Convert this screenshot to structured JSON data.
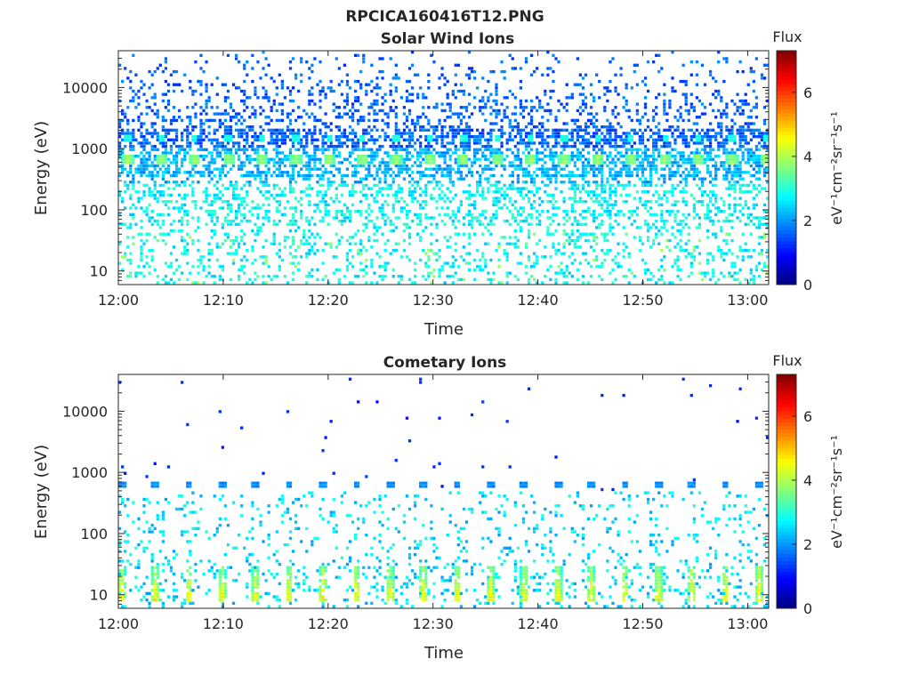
{
  "figure": {
    "title": "RPCICA160416T12.PNG"
  },
  "chart_data": [
    {
      "type": "heatmap",
      "title": "Solar Wind Ions",
      "xlabel": "Time",
      "ylabel": "Energy (eV)",
      "x_ticks": [
        "12:00",
        "12:10",
        "12:20",
        "12:30",
        "12:40",
        "12:50",
        "13:00"
      ],
      "x_tick_minutes": [
        0,
        10,
        20,
        30,
        40,
        50,
        60
      ],
      "xlim_minutes": [
        0,
        62
      ],
      "y_scale": "log",
      "y_ticks": [
        "10",
        "100",
        "1000",
        "10000"
      ],
      "y_tick_values": [
        10,
        100,
        1000,
        10000
      ],
      "ylim": [
        6,
        40000
      ],
      "colorbar": {
        "title": "Flux",
        "label": "eV⁻¹cm⁻²sr⁻¹s⁻¹",
        "ticks": [
          "0",
          "2",
          "4",
          "6"
        ],
        "tick_values": [
          0,
          2,
          4,
          6
        ],
        "range": [
          0,
          7.3
        ],
        "colormap": "jet"
      },
      "features": {
        "main_beam_energy_eV": 650,
        "main_beam_peak_flux": 3.9,
        "secondary_beam_energy_eV": 1450,
        "secondary_beam_peak_flux": 2.9,
        "beam_period_minutes": 3.2,
        "beam_start_minute": 0.9
      }
    },
    {
      "type": "heatmap",
      "title": "Cometary Ions",
      "xlabel": "Time",
      "ylabel": "Energy (eV)",
      "x_ticks": [
        "12:00",
        "12:10",
        "12:20",
        "12:30",
        "12:40",
        "12:50",
        "13:00"
      ],
      "x_tick_minutes": [
        0,
        10,
        20,
        30,
        40,
        50,
        60
      ],
      "xlim_minutes": [
        0,
        62
      ],
      "y_scale": "log",
      "y_ticks": [
        "10",
        "100",
        "1000",
        "10000"
      ],
      "y_tick_values": [
        10,
        100,
        1000,
        10000
      ],
      "ylim": [
        6,
        40000
      ],
      "colorbar": {
        "title": "Flux",
        "label": "eV⁻¹cm⁻²sr⁻¹s⁻¹",
        "ticks": [
          "0",
          "2",
          "4",
          "6"
        ],
        "tick_values": [
          0,
          2,
          4,
          6
        ],
        "range": [
          0,
          7.3
        ],
        "colormap": "jet"
      },
      "features": {
        "beam_energy_eV": 650,
        "beam_peak_flux": 1.9,
        "low_energy_bursts_eV": [
          8,
          30
        ],
        "low_energy_peak_flux": 4.8,
        "burst_period_minutes": 3.2,
        "burst_start_minute": 0.3
      }
    }
  ]
}
